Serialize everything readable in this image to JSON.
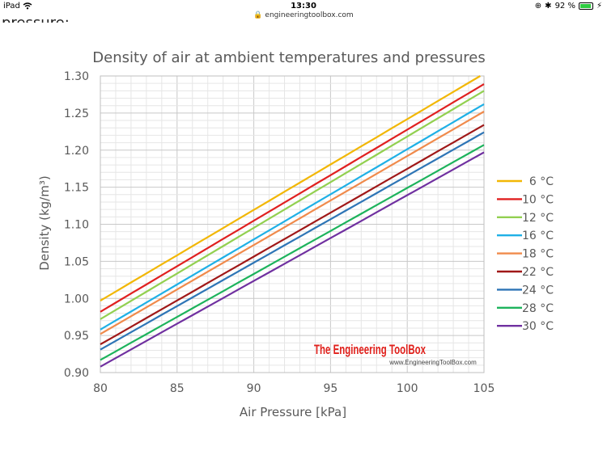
{
  "status": {
    "device": "iPad",
    "wifi_icon": "wifi-icon",
    "time": "13:30",
    "url": "engineeringtoolbox.com",
    "battery": "92 %",
    "battery_level": 0.92
  },
  "page": {
    "cut_text": "pressure:"
  },
  "watermark": {
    "brand": "The Engineering ToolBox",
    "url": "www.EngineeringToolBox.com"
  },
  "chart_data": {
    "type": "line",
    "title": "Density of air at ambient temperatures and pressures",
    "xlabel": "Air Pressure [kPa]",
    "ylabel": "Density (kg/m³)",
    "xlim": [
      80,
      105
    ],
    "ylim": [
      0.9,
      1.3
    ],
    "xticks": [
      80,
      85,
      90,
      95,
      100,
      105
    ],
    "yticks": [
      0.9,
      0.95,
      1.0,
      1.05,
      1.1,
      1.15,
      1.2,
      1.25,
      1.3
    ],
    "ytick_labels": [
      "0.90",
      "0.95",
      "1.00",
      "1.05",
      "1.10",
      "1.15",
      "1.20",
      "1.25",
      "1.30"
    ],
    "grid": true,
    "legend_position": "right",
    "x": [
      80,
      105
    ],
    "series": [
      {
        "name": "6 °C",
        "color": "#f2b705",
        "values": [
          0.997,
          1.303
        ]
      },
      {
        "name": "10 °C",
        "color": "#e02020",
        "values": [
          0.982,
          1.289
        ]
      },
      {
        "name": "12 °C",
        "color": "#92d050",
        "values": [
          0.972,
          1.28
        ]
      },
      {
        "name": "16 °C",
        "color": "#1fb0e6",
        "values": [
          0.958,
          1.262
        ]
      },
      {
        "name": "18 °C",
        "color": "#f08a4b",
        "values": [
          0.952,
          1.252
        ]
      },
      {
        "name": "22 °C",
        "color": "#a01818",
        "values": [
          0.938,
          1.234
        ]
      },
      {
        "name": "24 °C",
        "color": "#2e75b6",
        "values": [
          0.931,
          1.224
        ]
      },
      {
        "name": "28 °C",
        "color": "#1db35c",
        "values": [
          0.917,
          1.207
        ]
      },
      {
        "name": "30 °C",
        "color": "#7030a0",
        "values": [
          0.908,
          1.197
        ]
      }
    ]
  }
}
